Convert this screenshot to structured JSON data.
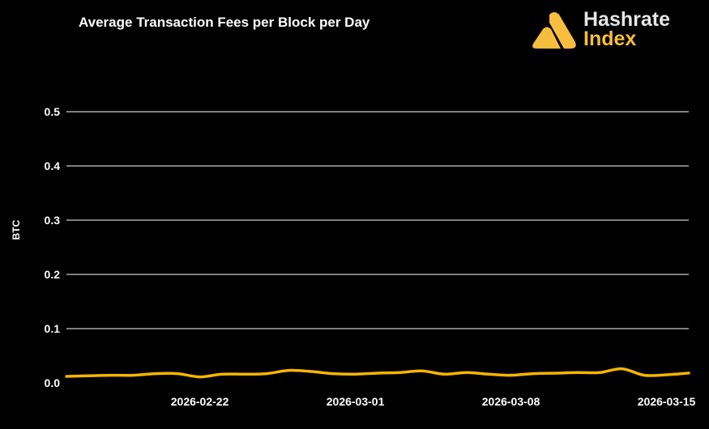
{
  "chart_data": {
    "type": "line",
    "title": "Average Transaction Fees per Block per Day",
    "xlabel": "",
    "ylabel": "BTC",
    "ylim": [
      0,
      0.5
    ],
    "yticks": [
      "0.0",
      "0.1",
      "0.2",
      "0.3",
      "0.4",
      "0.5"
    ],
    "xticks": [
      "2026-02-22",
      "2026-03-01",
      "2026-03-08",
      "2026-03-15"
    ],
    "xlim": [
      "2026-02-16",
      "2026-03-16"
    ],
    "grid": true,
    "line_color": "#f7b500",
    "x": [
      "2026-02-16",
      "2026-02-17",
      "2026-02-18",
      "2026-02-19",
      "2026-02-20",
      "2026-02-21",
      "2026-02-22",
      "2026-02-23",
      "2026-02-24",
      "2026-02-25",
      "2026-02-26",
      "2026-02-27",
      "2026-02-28",
      "2026-03-01",
      "2026-03-02",
      "2026-03-03",
      "2026-03-04",
      "2026-03-05",
      "2026-03-06",
      "2026-03-07",
      "2026-03-08",
      "2026-03-09",
      "2026-03-10",
      "2026-03-11",
      "2026-03-12",
      "2026-03-13",
      "2026-03-14",
      "2026-03-15",
      "2026-03-16"
    ],
    "values": [
      0.012,
      0.013,
      0.014,
      0.014,
      0.017,
      0.017,
      0.011,
      0.016,
      0.016,
      0.017,
      0.023,
      0.021,
      0.017,
      0.016,
      0.018,
      0.019,
      0.022,
      0.016,
      0.019,
      0.016,
      0.014,
      0.017,
      0.018,
      0.019,
      0.019,
      0.026,
      0.014,
      0.015,
      0.018
    ]
  },
  "logo": {
    "line1": "Hashrate",
    "line2": "Index",
    "accent": "#f7bd3e"
  }
}
